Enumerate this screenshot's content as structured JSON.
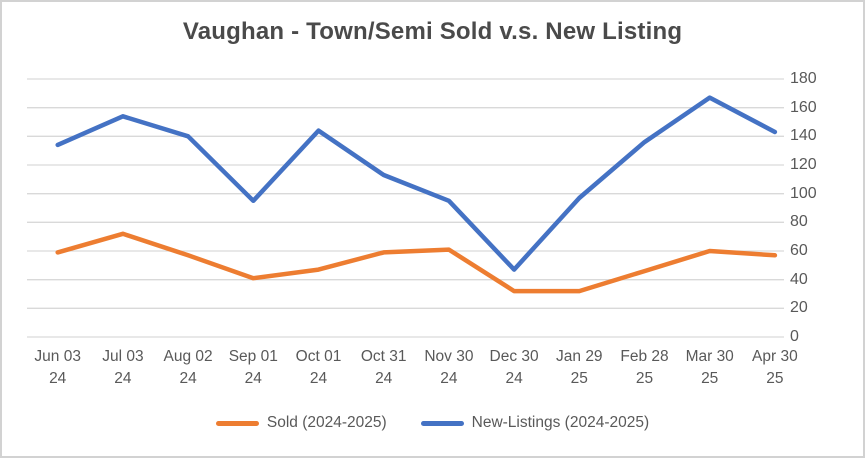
{
  "chart_data": {
    "type": "line",
    "title": "Vaughan - Town/Semi Sold v.s. New Listing",
    "categories": [
      {
        "date": "Jun 03",
        "year": "24"
      },
      {
        "date": "Jul 03",
        "year": "24"
      },
      {
        "date": "Aug 02",
        "year": "24"
      },
      {
        "date": "Sep 01",
        "year": "24"
      },
      {
        "date": "Oct 01",
        "year": "24"
      },
      {
        "date": "Oct 31",
        "year": "24"
      },
      {
        "date": "Nov 30",
        "year": "24"
      },
      {
        "date": "Dec 30",
        "year": "24"
      },
      {
        "date": "Jan 29",
        "year": "25"
      },
      {
        "date": "Feb 28",
        "year": "25"
      },
      {
        "date": "Mar 30",
        "year": "25"
      },
      {
        "date": "Apr 30",
        "year": "25"
      }
    ],
    "series": [
      {
        "name": "Sold (2024-2025)",
        "color": "#ED7D31",
        "values": [
          59,
          72,
          57,
          41,
          47,
          59,
          61,
          32,
          32,
          46,
          60,
          57
        ]
      },
      {
        "name": "New-Listings (2024-2025)",
        "color": "#4472C4",
        "values": [
          134,
          154,
          140,
          95,
          144,
          113,
          95,
          47,
          97,
          136,
          167,
          143
        ]
      }
    ],
    "ylim": [
      0,
      180
    ],
    "ytick_step": 20,
    "yticks": [
      180,
      160,
      140,
      120,
      100,
      80,
      60,
      40,
      20,
      0
    ],
    "y_axis_side": "right",
    "grid": true,
    "legend_position": "bottom"
  },
  "colors": {
    "grid": "#D9D9D9",
    "axis_text": "#595959",
    "title_text": "#4a4a4a",
    "page_border": "#D2D2D2",
    "background": "#FFFFFF"
  }
}
